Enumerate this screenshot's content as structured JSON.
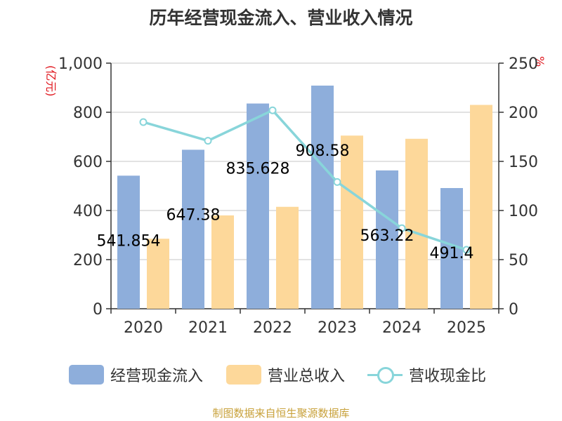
{
  "chart_data": {
    "type": "bar",
    "title": "历年经营现金流入、营业收入情况",
    "categories": [
      "2020",
      "2021",
      "2022",
      "2023",
      "2024",
      "2025"
    ],
    "series": [
      {
        "name": "经营现金流入",
        "type": "bar",
        "axis": "left",
        "color": "#8eaedb",
        "values": [
          541.854,
          647.38,
          835.628,
          908.58,
          563.22,
          491.4
        ],
        "labels": [
          "541.854",
          "647.38",
          "835.628",
          "908.58",
          "563.22",
          "491.4"
        ]
      },
      {
        "name": "营业总收入",
        "type": "bar",
        "axis": "left",
        "color": "#fdd89a",
        "values": [
          285,
          380,
          415,
          705,
          692,
          830
        ]
      },
      {
        "name": "营收现金比",
        "type": "line",
        "axis": "right",
        "color": "#88d5da",
        "values": [
          190,
          171,
          202,
          129,
          82,
          60
        ]
      }
    ],
    "y_left": {
      "label": "亿元",
      "min": 0,
      "max": 1000,
      "ticks": [
        "0",
        "200",
        "400",
        "600",
        "800",
        "1,000"
      ]
    },
    "y_right": {
      "label": "%",
      "min": 0,
      "max": 250,
      "ticks": [
        "0",
        "50",
        "100",
        "150",
        "200",
        "250"
      ]
    },
    "grid": true,
    "legend_position": "bottom"
  },
  "footer": {
    "source": "制图数据来自恒生聚源数据库"
  }
}
